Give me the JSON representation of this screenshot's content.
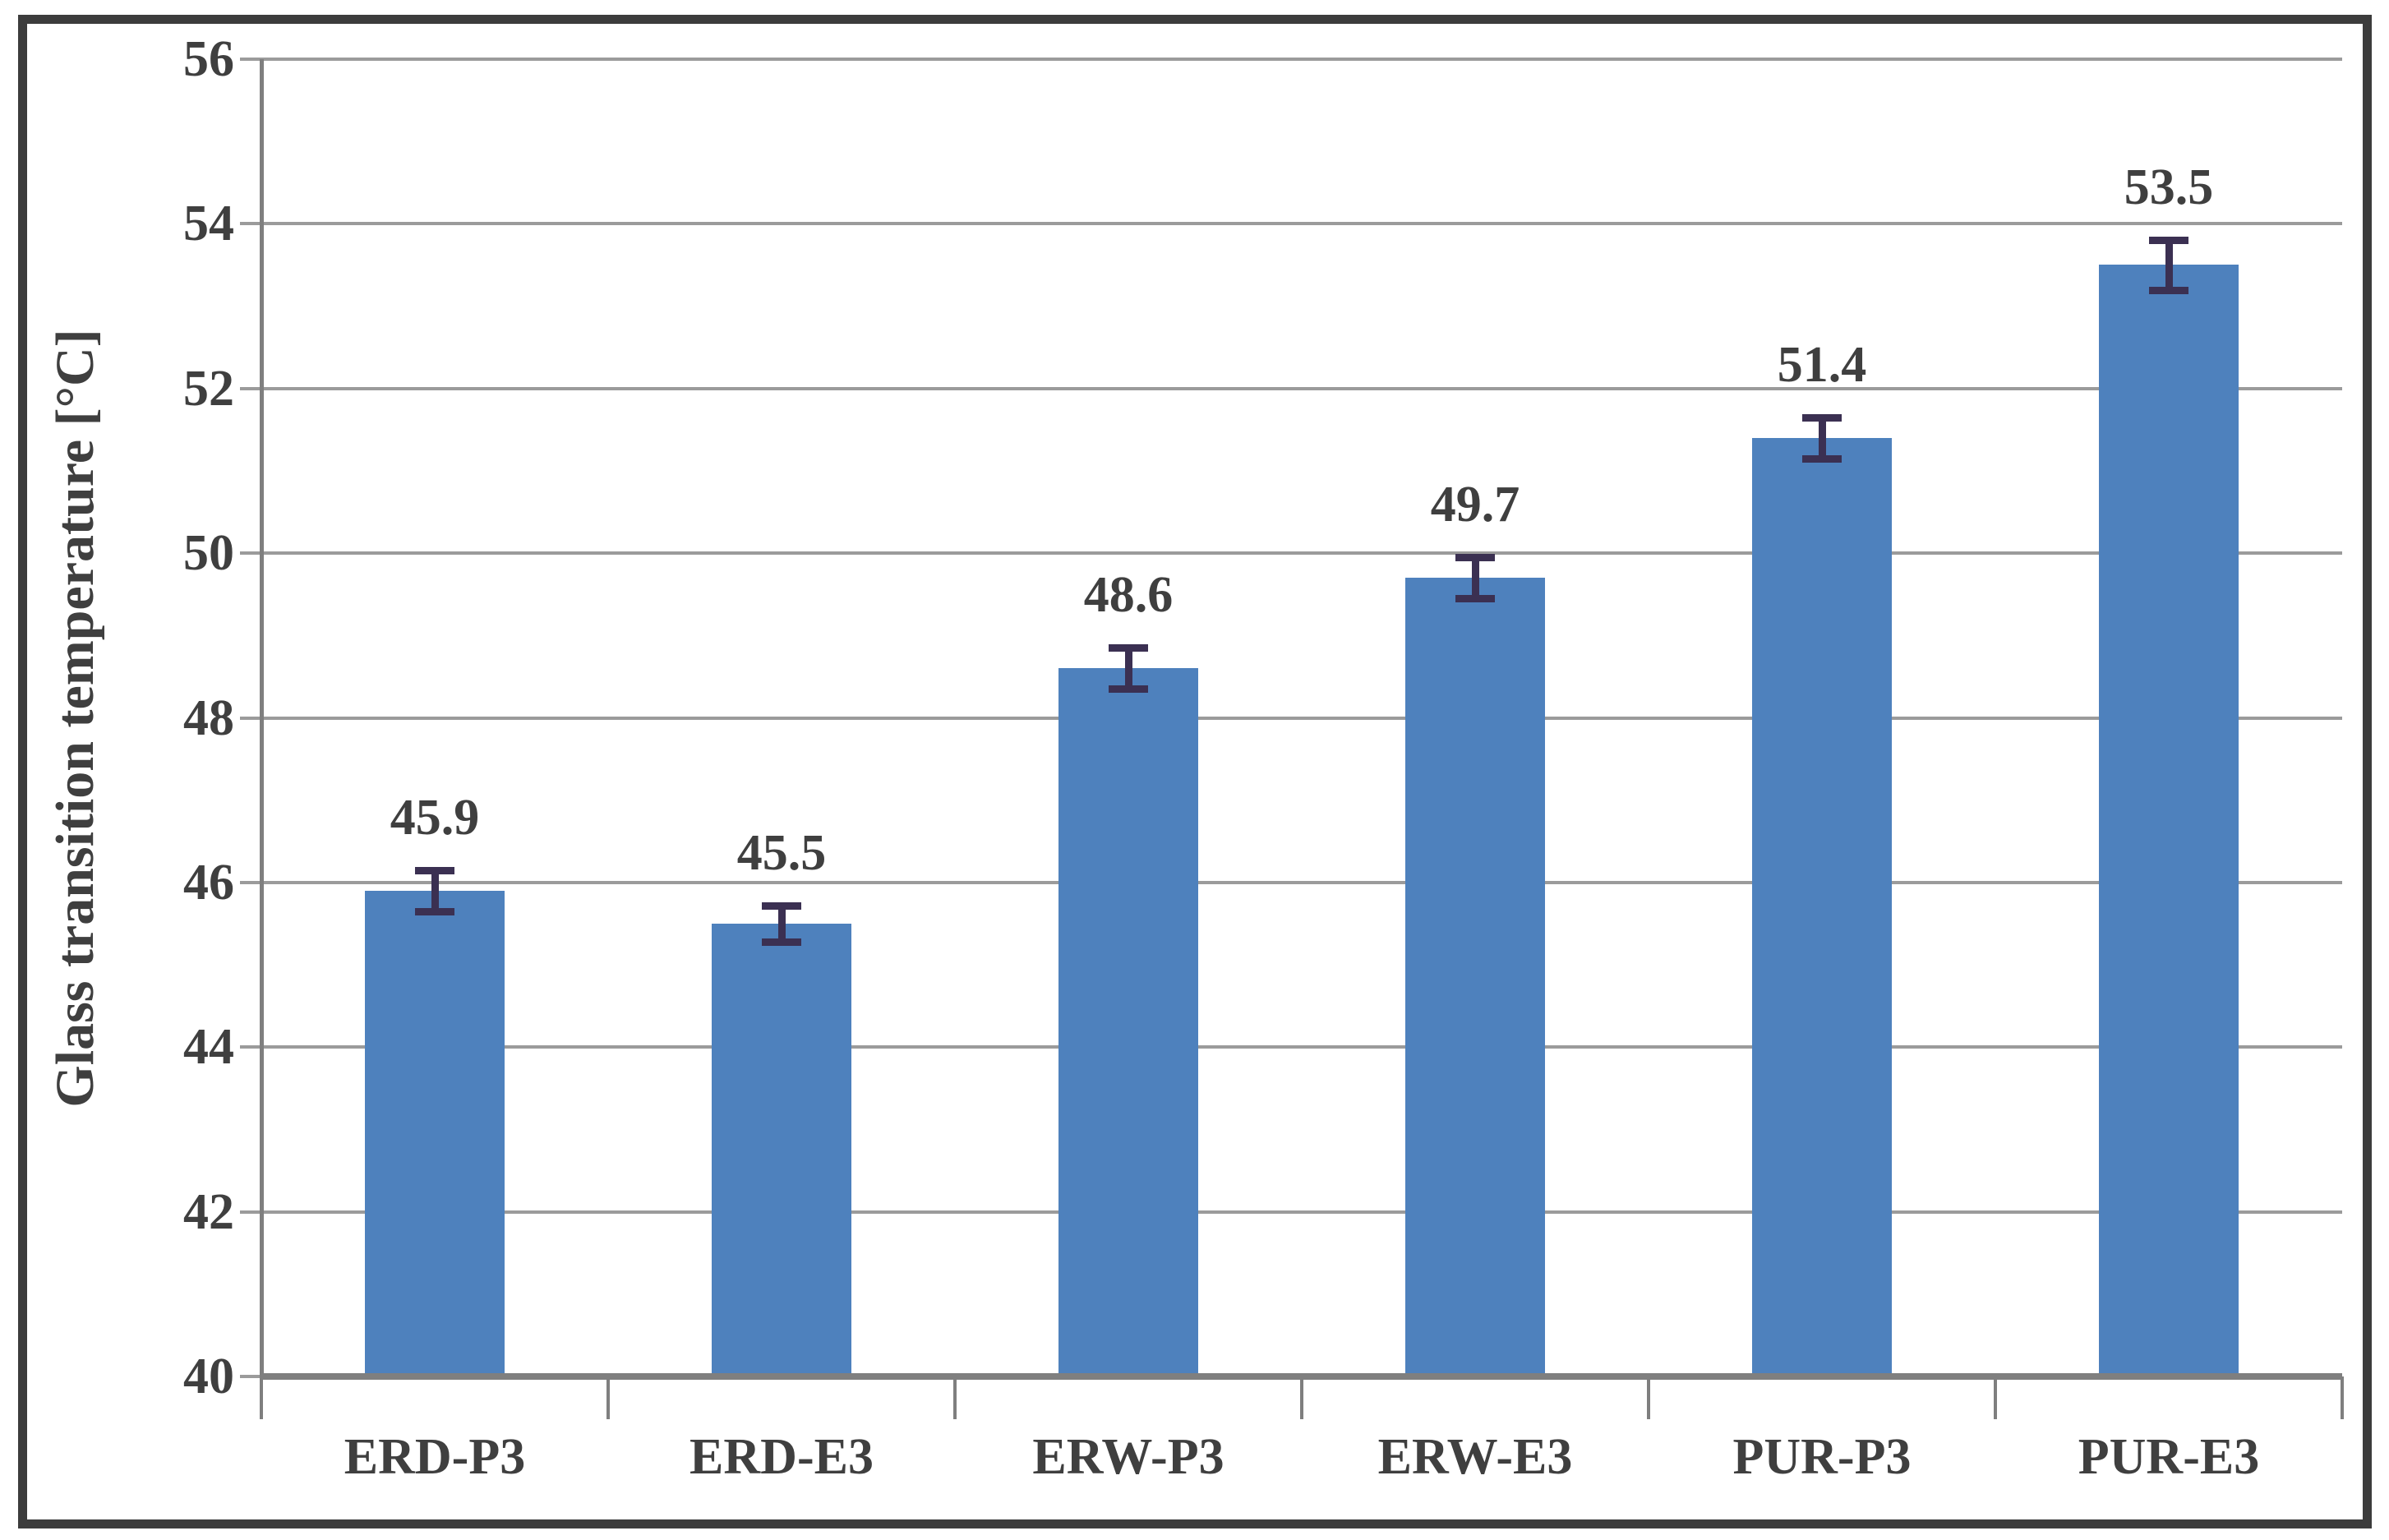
{
  "chart_data": {
    "type": "bar",
    "title": "",
    "ylabel": "Glass transition temperature [°C]",
    "xlabel": "",
    "categories": [
      "ERD-P3",
      "ERD-E3",
      "ERW-P3",
      "ERW-E3",
      "PUR-P3",
      "PUR-E3"
    ],
    "values": [
      45.9,
      45.5,
      48.6,
      49.7,
      51.4,
      53.5
    ],
    "value_labels": [
      "45.9",
      "45.5",
      "48.6",
      "49.7",
      "51.4",
      "53.5"
    ],
    "error_bars": [
      0.25,
      0.22,
      0.25,
      0.25,
      0.25,
      0.3
    ],
    "ylim": [
      40,
      56
    ],
    "yticks": [
      40,
      42,
      44,
      46,
      48,
      50,
      52,
      54,
      56
    ],
    "grid": "horizontal",
    "legend": "none",
    "colors": {
      "bar_fill": "#4E81BD",
      "error_bar": "#3B3052",
      "gridline": "#9B9B9B",
      "axis": "#7F7F7F",
      "text": "#3F3F3F",
      "frame": "#3C3C3C",
      "background": "#FFFFFF"
    }
  }
}
